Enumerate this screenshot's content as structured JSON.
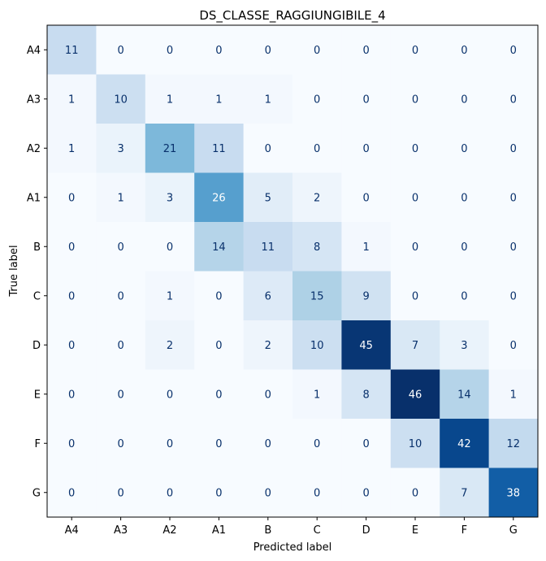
{
  "chart_data": {
    "type": "heatmap",
    "title": "DS_CLASSE_RAGGIUNGIBILE_4",
    "xlabel": "Predicted label",
    "ylabel": "True label",
    "x_categories": [
      "A4",
      "A3",
      "A2",
      "A1",
      "B",
      "C",
      "D",
      "E",
      "F",
      "G"
    ],
    "y_categories": [
      "A4",
      "A3",
      "A2",
      "A1",
      "B",
      "C",
      "D",
      "E",
      "F",
      "G"
    ],
    "values": [
      [
        11,
        0,
        0,
        0,
        0,
        0,
        0,
        0,
        0,
        0
      ],
      [
        1,
        10,
        1,
        1,
        1,
        0,
        0,
        0,
        0,
        0
      ],
      [
        1,
        3,
        21,
        11,
        0,
        0,
        0,
        0,
        0,
        0
      ],
      [
        0,
        1,
        3,
        26,
        5,
        2,
        0,
        0,
        0,
        0
      ],
      [
        0,
        0,
        0,
        14,
        11,
        8,
        1,
        0,
        0,
        0
      ],
      [
        0,
        0,
        1,
        0,
        6,
        15,
        9,
        0,
        0,
        0
      ],
      [
        0,
        0,
        2,
        0,
        2,
        10,
        45,
        7,
        3,
        0
      ],
      [
        0,
        0,
        0,
        0,
        0,
        1,
        8,
        46,
        14,
        1
      ],
      [
        0,
        0,
        0,
        0,
        0,
        0,
        0,
        10,
        42,
        12
      ],
      [
        0,
        0,
        0,
        0,
        0,
        0,
        0,
        0,
        7,
        38
      ]
    ],
    "colormap": "Blues",
    "vmin": 0,
    "vmax": 46,
    "grid": false,
    "legend": "none"
  }
}
